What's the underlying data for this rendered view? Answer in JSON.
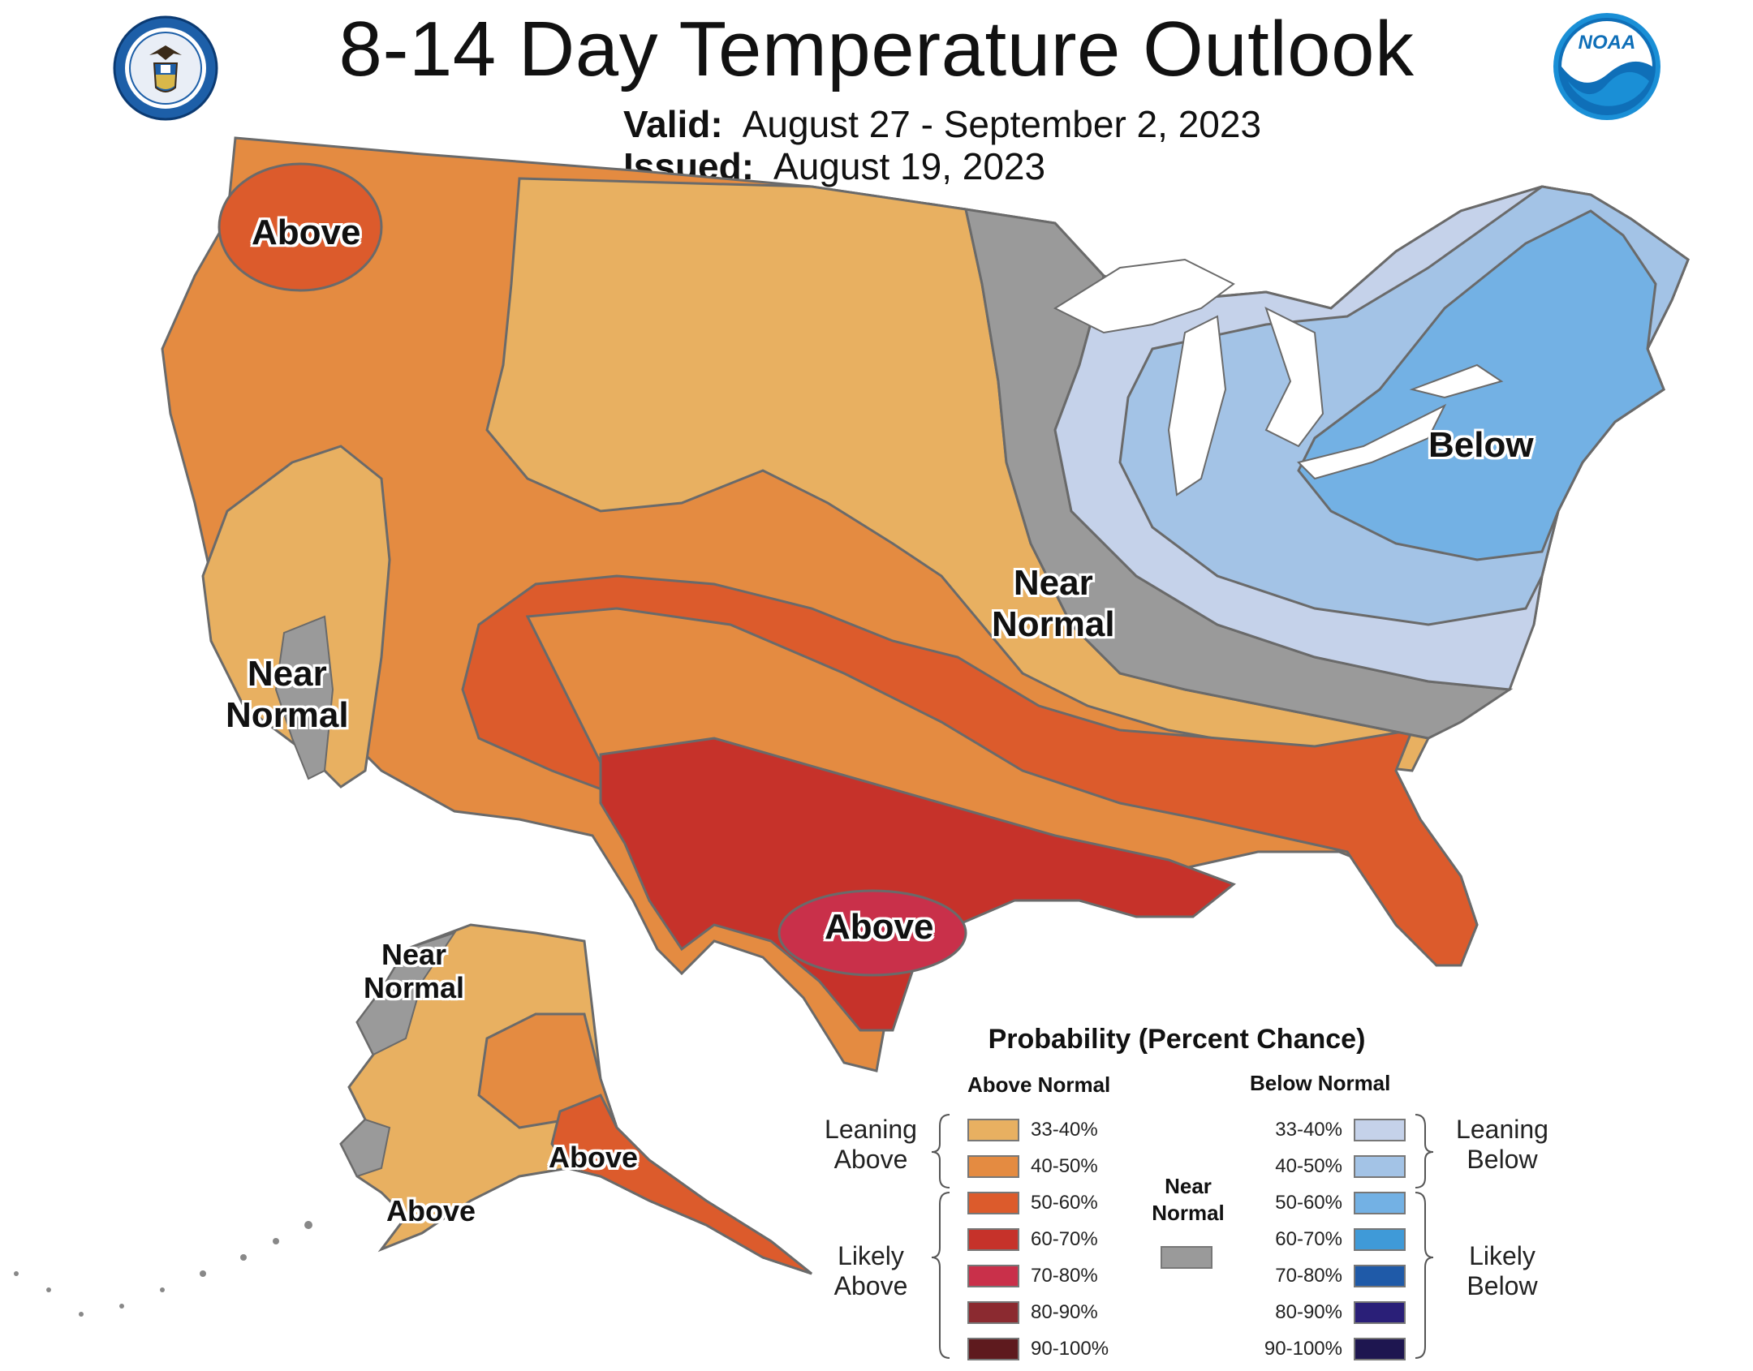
{
  "header": {
    "title": "8-14 Day Temperature Outlook",
    "valid_label": "Valid:",
    "valid_value": "August 27 - September 2, 2023",
    "issued_label": "Issued:",
    "issued_value": "August 19, 2023",
    "seal_icon": "commerce-seal-icon",
    "noaa_icon": "noaa-logo-icon",
    "noaa_text": "NOAA"
  },
  "map_labels": {
    "pacific_nw": "Above",
    "central_ca": [
      "Near",
      "Normal"
    ],
    "plains": [
      "Near",
      "Normal"
    ],
    "northeast": "Below",
    "texas": "Above",
    "alaska_west": [
      "Near",
      "Normal"
    ],
    "alaska_south": "Above",
    "alaska_southeast": "Above"
  },
  "legend": {
    "title": "Probability (Percent Chance)",
    "above_header": "Above Normal",
    "below_header": "Below Normal",
    "near_header": [
      "Near",
      "Normal"
    ],
    "near_color": "#9a9a9a",
    "leaning_above": [
      "Leaning",
      "Above"
    ],
    "likely_above": [
      "Likely",
      "Above"
    ],
    "leaning_below": [
      "Leaning",
      "Below"
    ],
    "likely_below": [
      "Likely",
      "Below"
    ],
    "above": [
      {
        "label": "33-40%",
        "color": "#e8b061"
      },
      {
        "label": "40-50%",
        "color": "#e48b41"
      },
      {
        "label": "50-60%",
        "color": "#dc5b2c"
      },
      {
        "label": "60-70%",
        "color": "#c6322a"
      },
      {
        "label": "70-80%",
        "color": "#c9304a"
      },
      {
        "label": "80-90%",
        "color": "#8b2a30"
      },
      {
        "label": "90-100%",
        "color": "#5e1a1e"
      }
    ],
    "below": [
      {
        "label": "33-40%",
        "color": "#c5d2ea"
      },
      {
        "label": "40-50%",
        "color": "#a3c3e6"
      },
      {
        "label": "50-60%",
        "color": "#73b1e4"
      },
      {
        "label": "60-70%",
        "color": "#3f9ad8"
      },
      {
        "label": "70-80%",
        "color": "#1f5aa8"
      },
      {
        "label": "80-90%",
        "color": "#2a1f78"
      },
      {
        "label": "90-100%",
        "color": "#1e1650"
      }
    ]
  }
}
